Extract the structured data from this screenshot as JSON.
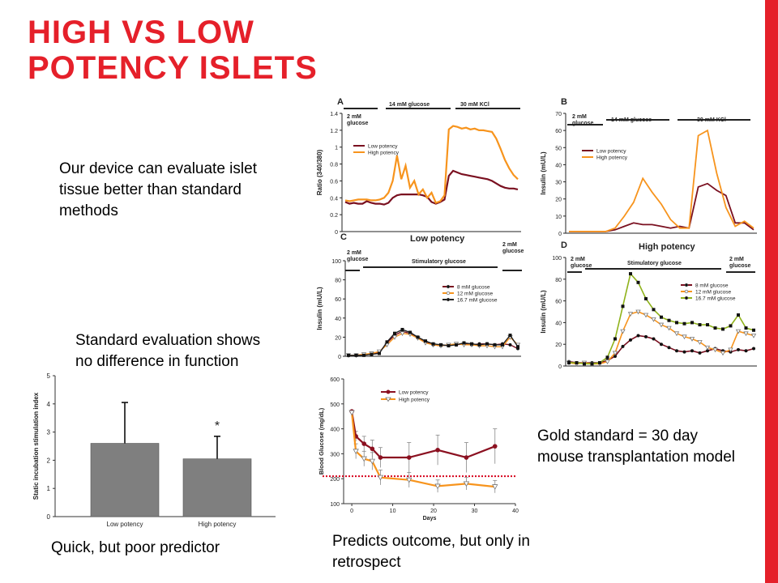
{
  "slide": {
    "title_line1": "HIGH VS LOW",
    "title_line2": "POTENCY ISLETS",
    "accent_color": "#e5202a"
  },
  "captions": {
    "device": "Our device can evaluate islet tissue better than standard methods",
    "standard": "Standard evaluation shows no difference in function",
    "quick": "Quick, but poor predictor",
    "gold": "Gold standard = 30 day mouse transplantation model",
    "predicts": "Predicts outcome, but only in retrospect"
  },
  "chart_data": [
    {
      "id": "A",
      "type": "line",
      "panel_letter": "A",
      "ylabel": "Ratio (340/380)",
      "ylim": [
        0,
        1.4
      ],
      "yticks": [
        "0",
        "0.2",
        "0.4",
        "0.6",
        "0.8",
        "1",
        "1.2",
        "1.4"
      ],
      "annotations": [
        "2 mM glucose",
        "14 mM glucose",
        "30 mM KCl"
      ],
      "series": [
        {
          "name": "Low potency",
          "color": "#7a1020",
          "values": [
            0.35,
            0.33,
            0.34,
            0.33,
            0.33,
            0.36,
            0.34,
            0.33,
            0.33,
            0.32,
            0.34,
            0.4,
            0.43,
            0.44,
            0.44,
            0.44,
            0.44,
            0.44,
            0.43,
            0.41,
            0.35,
            0.33,
            0.35,
            0.38,
            0.66,
            0.72,
            0.7,
            0.68,
            0.67,
            0.66,
            0.65,
            0.64,
            0.63,
            0.62,
            0.6,
            0.57,
            0.54,
            0.52,
            0.51,
            0.51,
            0.5
          ]
        },
        {
          "name": "High potency",
          "color": "#f7941d",
          "values": [
            0.37,
            0.36,
            0.37,
            0.38,
            0.38,
            0.38,
            0.37,
            0.37,
            0.38,
            0.4,
            0.46,
            0.6,
            0.9,
            0.62,
            0.78,
            0.52,
            0.6,
            0.44,
            0.5,
            0.4,
            0.46,
            0.34,
            0.36,
            0.43,
            1.21,
            1.25,
            1.24,
            1.22,
            1.23,
            1.21,
            1.22,
            1.2,
            1.2,
            1.19,
            1.18,
            1.1,
            0.98,
            0.85,
            0.75,
            0.67,
            0.62
          ]
        }
      ]
    },
    {
      "id": "B",
      "type": "line",
      "panel_letter": "B",
      "ylabel": "Insulin (mU/L)",
      "ylim": [
        0,
        70
      ],
      "yticks": [
        "0",
        "10",
        "20",
        "30",
        "40",
        "50",
        "60",
        "70"
      ],
      "annotations": [
        "2 mM glucose",
        "14 mM glucose",
        "30 mM KCl"
      ],
      "series": [
        {
          "name": "Low potency",
          "color": "#7a1020",
          "values": [
            1,
            1,
            1,
            1,
            1,
            2,
            4,
            6,
            5,
            5,
            4,
            3,
            4,
            3,
            27,
            29,
            25,
            22,
            6,
            6,
            2
          ]
        },
        {
          "name": "High potency",
          "color": "#f7941d",
          "values": [
            1,
            1,
            1,
            1,
            1,
            3,
            10,
            18,
            32,
            24,
            17,
            8,
            3,
            3,
            57,
            60,
            35,
            15,
            4,
            7,
            3
          ]
        }
      ]
    },
    {
      "id": "C",
      "type": "line",
      "panel_letter": "C",
      "title": "Low potency",
      "ylabel": "Insulin (mU/L)",
      "ylim": [
        0,
        100
      ],
      "yticks": [
        "0",
        "20",
        "40",
        "60",
        "80",
        "100"
      ],
      "annotations": [
        "2 mM glucose",
        "Stimulatory glucose",
        "2 mM glucose"
      ],
      "series": [
        {
          "name": "8 mM glucose",
          "color": "#7a1020",
          "values": [
            1,
            1,
            2,
            2,
            4,
            14,
            22,
            26,
            24,
            20,
            15,
            12,
            11,
            12,
            12,
            13,
            12,
            13,
            13,
            12,
            13,
            12,
            8
          ]
        },
        {
          "name": "12 mM glucose",
          "color": "#f7941d",
          "values": [
            1,
            1,
            2,
            3,
            5,
            12,
            20,
            24,
            23,
            19,
            14,
            12,
            11,
            12,
            13,
            12,
            12,
            11,
            11,
            10,
            10,
            20,
            12
          ]
        },
        {
          "name": "16.7 mM glucose",
          "color": "#222222",
          "values": [
            1,
            1,
            1,
            2,
            3,
            15,
            24,
            28,
            25,
            20,
            16,
            13,
            12,
            11,
            12,
            14,
            13,
            12,
            13,
            12,
            12,
            22,
            10
          ]
        }
      ]
    },
    {
      "id": "D",
      "type": "line",
      "panel_letter": "D",
      "title": "High potency",
      "ylabel": "Insulin (mU/L)",
      "ylim": [
        0,
        100
      ],
      "yticks": [
        "0",
        "20",
        "40",
        "60",
        "80",
        "100"
      ],
      "annotations": [
        "2 mM glucose",
        "Stimulatory glucose",
        "2 mM glucose"
      ],
      "series": [
        {
          "name": "8 mM glucose",
          "color": "#7a1020",
          "values": [
            4,
            3,
            3,
            3,
            3,
            5,
            9,
            18,
            24,
            28,
            27,
            25,
            20,
            17,
            14,
            13,
            14,
            12,
            14,
            16,
            14,
            13,
            15,
            14,
            16
          ]
        },
        {
          "name": "12 mM glucose",
          "color": "#f7941d",
          "values": [
            3,
            2,
            3,
            2,
            2,
            4,
            12,
            32,
            48,
            50,
            47,
            43,
            38,
            35,
            30,
            27,
            25,
            22,
            17,
            15,
            12,
            15,
            32,
            30,
            28
          ]
        },
        {
          "name": "16.7 mM glucose",
          "color": "#8fb21a",
          "values": [
            3,
            3,
            2,
            2,
            3,
            8,
            25,
            55,
            85,
            77,
            62,
            52,
            45,
            42,
            40,
            39,
            40,
            38,
            38,
            35,
            34,
            37,
            47,
            35,
            33
          ]
        }
      ]
    },
    {
      "id": "bar",
      "type": "bar",
      "ylabel": "Static incubation stimulation index",
      "ylim": [
        0,
        5
      ],
      "yticks": [
        "0",
        "1",
        "2",
        "3",
        "4",
        "5"
      ],
      "categories": [
        "Low potency",
        "High potency"
      ],
      "values": [
        2.6,
        2.05
      ],
      "errors": [
        1.45,
        0.8
      ],
      "annotations": [
        "*"
      ],
      "bar_color": "#7f7f7f"
    },
    {
      "id": "glucose",
      "type": "line",
      "xlabel": "Days",
      "ylabel": "Blood Glucose (mg/dL)",
      "xlim": [
        -2,
        40
      ],
      "ylim": [
        100,
        600
      ],
      "xticks": [
        "0",
        "10",
        "20",
        "30",
        "40"
      ],
      "yticks": [
        "100",
        "200",
        "300",
        "400",
        "500",
        "600"
      ],
      "threshold": 210,
      "series": [
        {
          "name": "Low potency",
          "color": "#8b1020",
          "x": [
            0,
            1,
            3,
            5,
            7,
            14,
            21,
            28,
            35
          ],
          "values": [
            470,
            370,
            340,
            320,
            285,
            285,
            315,
            285,
            330
          ],
          "errors": [
            0,
            20,
            30,
            35,
            40,
            60,
            60,
            60,
            70
          ]
        },
        {
          "name": "High potency",
          "color": "#f7941d",
          "x": [
            0,
            1,
            3,
            5,
            7,
            14,
            21,
            28,
            35
          ],
          "values": [
            465,
            310,
            280,
            270,
            205,
            195,
            170,
            180,
            168
          ],
          "errors": [
            0,
            30,
            30,
            35,
            30,
            30,
            25,
            25,
            25
          ]
        }
      ]
    }
  ]
}
